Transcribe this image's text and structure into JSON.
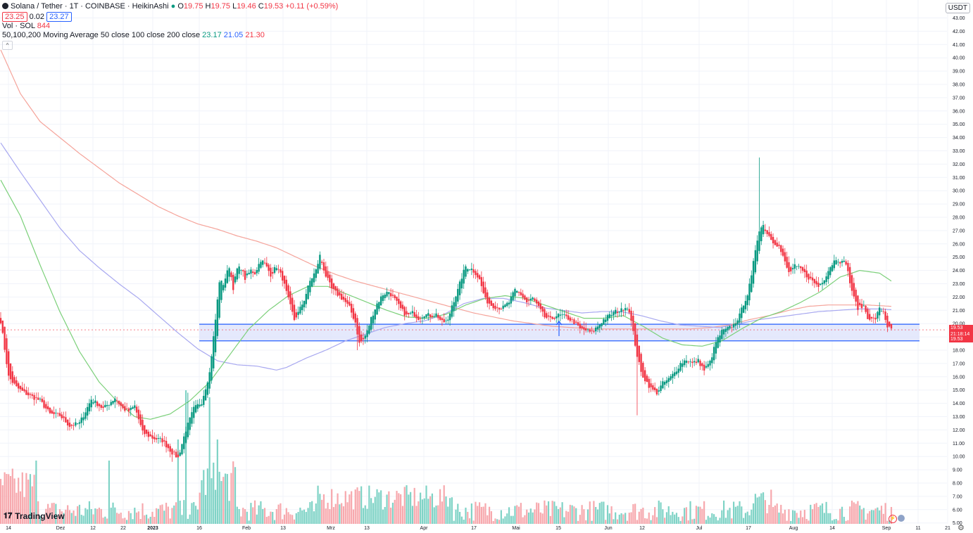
{
  "header": {
    "symbol": "Solana / Tether · 1T · COINBASE · HeikinAshi",
    "o_label": "O",
    "o_value": "19.75",
    "h_label": "H",
    "h_value": "19.75",
    "l_label": "L",
    "l_value": "19.46",
    "c_label": "C",
    "c_value": "19.53",
    "change": "+0.11 (+0.59%)",
    "bid": "23.25",
    "spread": "0.02",
    "ask": "23.27",
    "vol_label": "Vol · SOL",
    "vol_value": "844",
    "ma_label": "50,100,200 Moving Average 50 close 100 close 200 close",
    "ma50": "23.17",
    "ma100": "21.05",
    "ma200": "21.30",
    "collapse": "^"
  },
  "currency": "USDT",
  "price_tags": {
    "last": "19.53",
    "countdown": "21:18:14",
    "low": "19.53"
  },
  "branding": "TradingView",
  "colors": {
    "up": "#089981",
    "down": "#f23645",
    "vol_up": "#7fd3c6",
    "vol_down": "#f7a8ad",
    "ma50": "#7cd07a",
    "ma100": "#a8a8f0",
    "ma200": "#f5a49b",
    "zone_fill": "#dfe3fb",
    "zone_line": "#2962ff"
  },
  "chart_data": {
    "type": "candlestick",
    "style": "HeikinAshi",
    "ylim": [
      5.0,
      43.5
    ],
    "y_ticks": [
      "43.00",
      "42.00",
      "41.00",
      "40.00",
      "39.00",
      "38.00",
      "37.00",
      "36.00",
      "35.00",
      "34.00",
      "33.00",
      "32.00",
      "31.00",
      "30.00",
      "29.00",
      "28.00",
      "27.00",
      "26.00",
      "25.00",
      "24.00",
      "23.00",
      "22.00",
      "21.00",
      "20.00",
      "19.00",
      "18.00",
      "17.00",
      "16.00",
      "15.00",
      "14.00",
      "13.00",
      "12.00",
      "11.00",
      "10.00",
      "9.00",
      "8.00",
      "7.00",
      "6.00",
      "5.00"
    ],
    "x_ticks": [
      "14",
      "Dez",
      "12",
      "22",
      "2023",
      "16",
      "Feb",
      "13",
      "Mrz",
      "13",
      "Apr",
      "17",
      "Mai",
      "15",
      "Jun",
      "12",
      "Jul",
      "17",
      "Aug",
      "14",
      "Sep",
      "11",
      "21"
    ],
    "zone": [
      18.7,
      19.95
    ],
    "price_anchors": [
      [
        0,
        20.2
      ],
      [
        4,
        16.0
      ],
      [
        8,
        15.2
      ],
      [
        12,
        14.8
      ],
      [
        16,
        14.5
      ],
      [
        20,
        14.2
      ],
      [
        25,
        13.2
      ],
      [
        30,
        13.1
      ],
      [
        35,
        12.3
      ],
      [
        40,
        12.5
      ],
      [
        46,
        14.3
      ],
      [
        52,
        13.6
      ],
      [
        58,
        14.4
      ],
      [
        62,
        13.6
      ],
      [
        65,
        13.4
      ],
      [
        68,
        13.8
      ],
      [
        72,
        11.8
      ],
      [
        77,
        11.4
      ],
      [
        82,
        11.2
      ],
      [
        87,
        10.3
      ],
      [
        90,
        9.9
      ],
      [
        94,
        12.0
      ],
      [
        98,
        13.6
      ],
      [
        102,
        14.1
      ],
      [
        106,
        16.3
      ],
      [
        109,
        20.3
      ],
      [
        111,
        23.2
      ],
      [
        113,
        23.0
      ],
      [
        116,
        24.3
      ],
      [
        118,
        22.7
      ],
      [
        120,
        24.1
      ],
      [
        122,
        24.2
      ],
      [
        124,
        23.4
      ],
      [
        127,
        24.0
      ],
      [
        129,
        23.8
      ],
      [
        132,
        24.8
      ],
      [
        134,
        24.5
      ],
      [
        137,
        23.7
      ],
      [
        140,
        24.3
      ],
      [
        143,
        23.4
      ],
      [
        146,
        21.8
      ],
      [
        149,
        20.3
      ],
      [
        151,
        20.8
      ],
      [
        154,
        21.8
      ],
      [
        157,
        23.2
      ],
      [
        160,
        24.0
      ],
      [
        162,
        25.1
      ],
      [
        165,
        23.6
      ],
      [
        168,
        22.6
      ],
      [
        171,
        22.2
      ],
      [
        174,
        21.8
      ],
      [
        177,
        21.2
      ],
      [
        180,
        20.1
      ],
      [
        182,
        18.5
      ],
      [
        184,
        18.8
      ],
      [
        186,
        19.4
      ],
      [
        188,
        20.4
      ],
      [
        191,
        21.5
      ],
      [
        194,
        22.2
      ],
      [
        197,
        22.4
      ],
      [
        200,
        21.8
      ],
      [
        203,
        21.1
      ],
      [
        206,
        20.6
      ],
      [
        209,
        20.8
      ],
      [
        212,
        20.4
      ],
      [
        215,
        20.7
      ],
      [
        218,
        20.6
      ],
      [
        221,
        20.7
      ],
      [
        224,
        20.1
      ],
      [
        227,
        20.2
      ],
      [
        229,
        21.4
      ],
      [
        232,
        22.5
      ],
      [
        234,
        23.5
      ],
      [
        236,
        24.3
      ],
      [
        239,
        24.1
      ],
      [
        241,
        23.8
      ],
      [
        243,
        23.3
      ],
      [
        246,
        21.8
      ],
      [
        249,
        21.4
      ],
      [
        252,
        21.2
      ],
      [
        255,
        21.2
      ],
      [
        258,
        21.6
      ],
      [
        261,
        22.5
      ],
      [
        264,
        22.2
      ],
      [
        267,
        21.6
      ],
      [
        270,
        21.9
      ],
      [
        273,
        21.2
      ],
      [
        276,
        20.5
      ],
      [
        279,
        20.3
      ],
      [
        282,
        20.6
      ],
      [
        285,
        20.6
      ],
      [
        288,
        20.4
      ],
      [
        291,
        20.1
      ],
      [
        294,
        19.6
      ],
      [
        297,
        19.5
      ],
      [
        300,
        19.3
      ],
      [
        303,
        19.8
      ],
      [
        306,
        20.3
      ],
      [
        309,
        20.6
      ],
      [
        312,
        20.9
      ],
      [
        315,
        21.0
      ],
      [
        317,
        21.3
      ],
      [
        319,
        21.0
      ],
      [
        321,
        19.3
      ],
      [
        323,
        17.6
      ],
      [
        325,
        16.3
      ],
      [
        327,
        15.8
      ],
      [
        330,
        15.1
      ],
      [
        333,
        14.8
      ],
      [
        336,
        15.5
      ],
      [
        339,
        15.8
      ],
      [
        342,
        16.3
      ],
      [
        345,
        17.0
      ],
      [
        348,
        17.3
      ],
      [
        351,
        17.0
      ],
      [
        354,
        17.2
      ],
      [
        357,
        16.5
      ],
      [
        360,
        17.1
      ],
      [
        363,
        18.6
      ],
      [
        366,
        19.4
      ],
      [
        369,
        19.6
      ],
      [
        372,
        19.9
      ],
      [
        375,
        20.6
      ],
      [
        377,
        21.5
      ],
      [
        379,
        22.2
      ],
      [
        381,
        23.5
      ],
      [
        383,
        25.6
      ],
      [
        385,
        27.1
      ],
      [
        387,
        27.4
      ],
      [
        389,
        26.8
      ],
      [
        392,
        26.2
      ],
      [
        395,
        25.8
      ],
      [
        398,
        24.6
      ],
      [
        400,
        23.8
      ],
      [
        403,
        24.3
      ],
      [
        406,
        24.1
      ],
      [
        409,
        23.6
      ],
      [
        412,
        23.2
      ],
      [
        415,
        22.8
      ],
      [
        418,
        23.4
      ],
      [
        421,
        24.3
      ],
      [
        424,
        24.9
      ],
      [
        427,
        24.6
      ],
      [
        429,
        24.6
      ],
      [
        431,
        23.1
      ],
      [
        433,
        21.9
      ],
      [
        435,
        21.2
      ],
      [
        438,
        21.3
      ],
      [
        440,
        20.5
      ],
      [
        442,
        20.3
      ],
      [
        444,
        20.4
      ],
      [
        446,
        21.1
      ],
      [
        448,
        20.9
      ],
      [
        450,
        19.8
      ],
      [
        452,
        19.5
      ]
    ],
    "ma50_anchors": [
      [
        0,
        30.8
      ],
      [
        10,
        28.1
      ],
      [
        20,
        24.4
      ],
      [
        30,
        20.9
      ],
      [
        40,
        17.9
      ],
      [
        50,
        15.6
      ],
      [
        60,
        14.0
      ],
      [
        68,
        13.0
      ],
      [
        76,
        12.8
      ],
      [
        86,
        13.2
      ],
      [
        96,
        14.2
      ],
      [
        106,
        15.6
      ],
      [
        116,
        17.6
      ],
      [
        126,
        19.6
      ],
      [
        136,
        21.0
      ],
      [
        146,
        22.1
      ],
      [
        156,
        22.8
      ],
      [
        166,
        22.8
      ],
      [
        176,
        22.2
      ],
      [
        186,
        21.6
      ],
      [
        196,
        21.0
      ],
      [
        206,
        20.5
      ],
      [
        216,
        20.4
      ],
      [
        226,
        20.7
      ],
      [
        236,
        21.4
      ],
      [
        246,
        21.9
      ],
      [
        256,
        22.1
      ],
      [
        266,
        21.9
      ],
      [
        276,
        21.4
      ],
      [
        286,
        20.9
      ],
      [
        296,
        20.4
      ],
      [
        306,
        20.4
      ],
      [
        316,
        20.6
      ],
      [
        326,
        19.8
      ],
      [
        336,
        18.9
      ],
      [
        346,
        18.4
      ],
      [
        356,
        18.3
      ],
      [
        366,
        18.7
      ],
      [
        376,
        19.6
      ],
      [
        386,
        20.4
      ],
      [
        396,
        20.9
      ],
      [
        406,
        21.6
      ],
      [
        416,
        22.4
      ],
      [
        426,
        23.5
      ],
      [
        436,
        24.0
      ],
      [
        446,
        23.8
      ],
      [
        452,
        23.2
      ]
    ],
    "ma100_anchors": [
      [
        0,
        33.6
      ],
      [
        10,
        31.4
      ],
      [
        20,
        29.3
      ],
      [
        30,
        27.2
      ],
      [
        40,
        25.5
      ],
      [
        50,
        24.2
      ],
      [
        60,
        23.0
      ],
      [
        70,
        21.9
      ],
      [
        80,
        20.6
      ],
      [
        90,
        19.3
      ],
      [
        100,
        18.1
      ],
      [
        110,
        17.2
      ],
      [
        120,
        16.9
      ],
      [
        130,
        16.8
      ],
      [
        140,
        16.5
      ],
      [
        145,
        16.7
      ],
      [
        155,
        17.4
      ],
      [
        165,
        18.0
      ],
      [
        175,
        18.7
      ],
      [
        185,
        19.2
      ],
      [
        195,
        19.7
      ],
      [
        205,
        20.0
      ],
      [
        215,
        20.2
      ],
      [
        225,
        20.7
      ],
      [
        235,
        21.5
      ],
      [
        245,
        21.9
      ],
      [
        255,
        21.9
      ],
      [
        265,
        21.6
      ],
      [
        275,
        21.2
      ],
      [
        285,
        21.0
      ],
      [
        295,
        20.8
      ],
      [
        305,
        20.9
      ],
      [
        315,
        20.9
      ],
      [
        325,
        20.6
      ],
      [
        335,
        20.2
      ],
      [
        345,
        19.9
      ],
      [
        355,
        19.8
      ],
      [
        365,
        19.7
      ],
      [
        375,
        20.0
      ],
      [
        385,
        20.3
      ],
      [
        395,
        20.5
      ],
      [
        405,
        20.7
      ],
      [
        415,
        20.9
      ],
      [
        425,
        21.0
      ],
      [
        435,
        21.1
      ],
      [
        445,
        21.1
      ],
      [
        452,
        21.05
      ]
    ],
    "ma200_anchors": [
      [
        0,
        40.6
      ],
      [
        10,
        37.3
      ],
      [
        20,
        35.2
      ],
      [
        30,
        34.0
      ],
      [
        40,
        32.8
      ],
      [
        50,
        31.7
      ],
      [
        60,
        30.6
      ],
      [
        70,
        29.7
      ],
      [
        80,
        28.8
      ],
      [
        90,
        28.1
      ],
      [
        100,
        27.5
      ],
      [
        110,
        27.1
      ],
      [
        120,
        26.6
      ],
      [
        130,
        26.2
      ],
      [
        140,
        25.7
      ],
      [
        150,
        25.0
      ],
      [
        160,
        24.3
      ],
      [
        170,
        23.7
      ],
      [
        180,
        23.2
      ],
      [
        190,
        22.8
      ],
      [
        200,
        22.4
      ],
      [
        210,
        22.0
      ],
      [
        220,
        21.6
      ],
      [
        230,
        21.2
      ],
      [
        240,
        20.8
      ],
      [
        250,
        20.5
      ],
      [
        260,
        20.2
      ],
      [
        270,
        20.0
      ],
      [
        280,
        19.8
      ],
      [
        290,
        19.7
      ],
      [
        300,
        19.6
      ],
      [
        310,
        19.6
      ],
      [
        320,
        19.6
      ],
      [
        330,
        19.6
      ],
      [
        340,
        19.6
      ],
      [
        350,
        19.6
      ],
      [
        360,
        19.7
      ],
      [
        370,
        19.9
      ],
      [
        380,
        20.3
      ],
      [
        390,
        20.6
      ],
      [
        400,
        21.0
      ],
      [
        410,
        21.3
      ],
      [
        420,
        21.4
      ],
      [
        430,
        21.4
      ],
      [
        440,
        21.4
      ],
      [
        452,
        21.3
      ]
    ]
  }
}
